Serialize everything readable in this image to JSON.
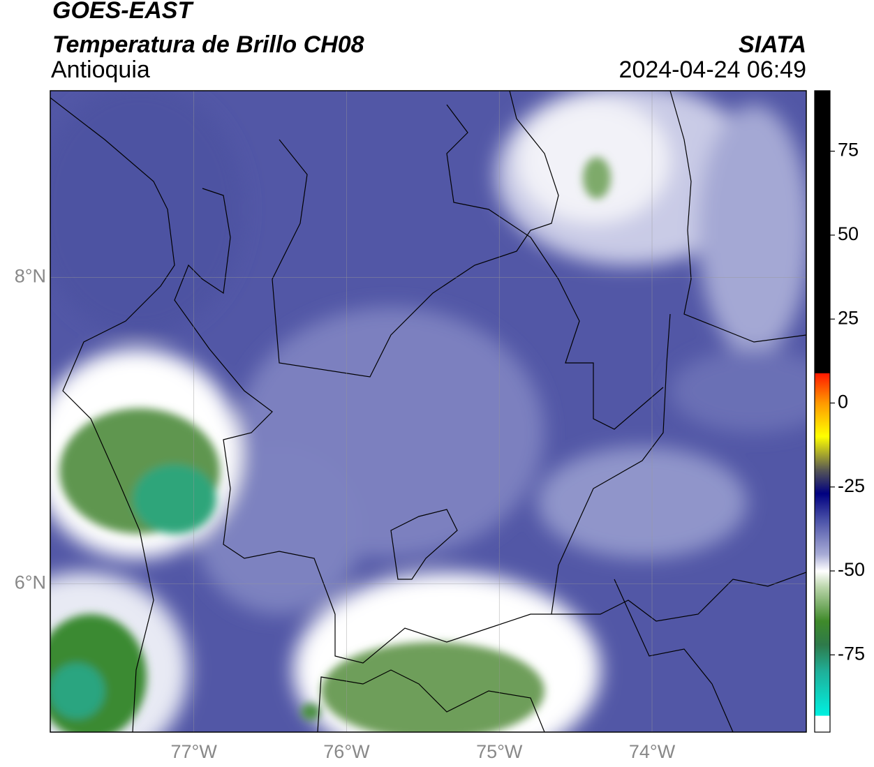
{
  "header": {
    "title": "GOES-EAST",
    "subtitle": "Temperatura de Brillo CH08",
    "region": "Antioquia",
    "source": "SIATA",
    "datetime": "2024-04-24 06:49"
  },
  "map": {
    "lon_range": [
      -77.94,
      -72.99
    ],
    "lat_range": [
      5.03,
      9.22
    ],
    "lon_ticks": [
      {
        "value": -77,
        "label": "77°W"
      },
      {
        "value": -76,
        "label": "76°W"
      },
      {
        "value": -75,
        "label": "75°W"
      },
      {
        "value": -74,
        "label": "74°W"
      }
    ],
    "lat_ticks": [
      {
        "value": 6,
        "label": "6°N"
      },
      {
        "value": 8,
        "label": "8°N"
      }
    ]
  },
  "colorbar": {
    "range": [
      -98,
      93
    ],
    "ticks": [
      75,
      50,
      25,
      0,
      -25,
      -50,
      -75
    ]
  }
}
